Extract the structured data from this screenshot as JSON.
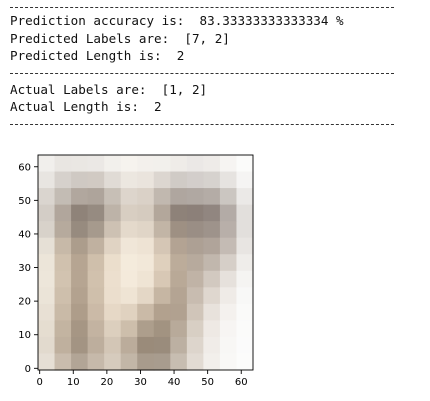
{
  "output": {
    "rule_text": "-------------------------------------------------------",
    "block1": [
      "Prediction accuracy is:  83.33333333333334 %",
      "Predicted Labels are:  [7, 2]",
      "Predicted Length is:  2"
    ],
    "block2": [
      "Actual Labels are:  [1, 2]",
      "Actual Length is:  2"
    ]
  },
  "chart_data": {
    "type": "heatmap",
    "title": "",
    "xlabel": "",
    "ylabel": "",
    "x_ticks": [
      "0",
      "10",
      "20",
      "30",
      "40",
      "50",
      "60"
    ],
    "y_ticks": [
      "0",
      "10",
      "20",
      "30",
      "40",
      "50",
      "60"
    ],
    "xlim": [
      -0.5,
      63.5
    ],
    "ylim": [
      63.5,
      -0.5
    ],
    "grid_size": [
      13,
      13
    ],
    "pixels": [
      [
        "#f1efec",
        "#e9e6e2",
        "#eae7e3",
        "#ebe8e5",
        "#f2f0ec",
        "#f6f3ee",
        "#f3f0ec",
        "#f2f0ec",
        "#efece8",
        "#ebe8e6",
        "#eeebe8",
        "#f6f4f2",
        "#fbfbfa"
      ],
      [
        "#e8e5e1",
        "#d6d1cc",
        "#cfc9c3",
        "#d1cac3",
        "#e0dbd5",
        "#ece7e0",
        "#eae4dd",
        "#dcd6d0",
        "#d0cbc6",
        "#d3cecb",
        "#d6d2ce",
        "#e6e3e0",
        "#f5f4f3"
      ],
      [
        "#dad5cf",
        "#c3bcb4",
        "#b1a79e",
        "#aea49b",
        "#c7bfb6",
        "#ddd5cc",
        "#dad1c7",
        "#c1b8af",
        "#afa69f",
        "#b0a8a2",
        "#b4aca6",
        "#cbc6c1",
        "#ebe9e7"
      ],
      [
        "#d3cdc6",
        "#b1a69c",
        "#8f8379",
        "#968b81",
        "#bdb3a8",
        "#d8cec2",
        "#d5cbbf",
        "#b3a79b",
        "#8e8279",
        "#8c8079",
        "#918680",
        "#b3aba6",
        "#e2dfdc"
      ],
      [
        "#d8d2ca",
        "#b6aa9d",
        "#978b7f",
        "#a69a8d",
        "#cdc1b3",
        "#e4d9cb",
        "#e0d5c7",
        "#c2b5a6",
        "#9e9083",
        "#9a8e85",
        "#9e938b",
        "#b8afa9",
        "#e2dfdc"
      ],
      [
        "#e6e0d6",
        "#c7b9a8",
        "#ac9d8c",
        "#c0b1a0",
        "#e0d3c3",
        "#f0e6d8",
        "#eee3d4",
        "#d5c6b5",
        "#b3a393",
        "#ada094",
        "#b0a49a",
        "#c4bbb4",
        "#e8e5e2"
      ],
      [
        "#ece5d9",
        "#d0c1ae",
        "#b6a592",
        "#cfbfab",
        "#ebdecc",
        "#f4ebdc",
        "#f2e8d9",
        "#dfd0bd",
        "#bcac9a",
        "#b7aa9d",
        "#c1b7ad",
        "#d6cfc8",
        "#efedea"
      ],
      [
        "#ede6da",
        "#d2c3b0",
        "#b6a592",
        "#d1c1ad",
        "#ecdfce",
        "#f4eadb",
        "#efe4d4",
        "#d8c8b5",
        "#b9a997",
        "#c0b3a6",
        "#d2c9c0",
        "#e6e1dc",
        "#f5f4f2"
      ],
      [
        "#ebe4d8",
        "#cebfac",
        "#b3a28f",
        "#cfbfab",
        "#ebdecd",
        "#efe4d4",
        "#e4d7c6",
        "#c6b6a3",
        "#b4a493",
        "#c8bcb0",
        "#dfd7cf",
        "#efebe7",
        "#f8f8f7"
      ],
      [
        "#e8e0d4",
        "#c9baa7",
        "#ae9d8a",
        "#cbbaa7",
        "#e6d8c6",
        "#e0d2c0",
        "#cabaa7",
        "#b2a18e",
        "#b1a190",
        "#d0c5b9",
        "#e8e2dc",
        "#f4f1ee",
        "#fafaf9"
      ],
      [
        "#e5ddd0",
        "#c3b4a1",
        "#a69684",
        "#c3b3a1",
        "#dccfbe",
        "#cdbeab",
        "#ad9e8c",
        "#a29381",
        "#b8aa9a",
        "#d8cfc4",
        "#eee9e4",
        "#f7f5f3",
        "#fbfbfa"
      ],
      [
        "#e2dace",
        "#bfb09e",
        "#a39483",
        "#bdae9d",
        "#d3c6b6",
        "#bbac9b",
        "#9a8b7a",
        "#9a8c7c",
        "#bcb0a2",
        "#ddd5cc",
        "#f0ece8",
        "#f8f7f5",
        "#fbfbfb"
      ],
      [
        "#e6dfd5",
        "#c9bcad",
        "#b2a596",
        "#c6b9aa",
        "#d6cbbd",
        "#c2b6a7",
        "#a89b8c",
        "#a89c8e",
        "#c7bdb1",
        "#e2dbd3",
        "#f2efeb",
        "#f9f8f6",
        "#fcfcfb"
      ]
    ]
  }
}
